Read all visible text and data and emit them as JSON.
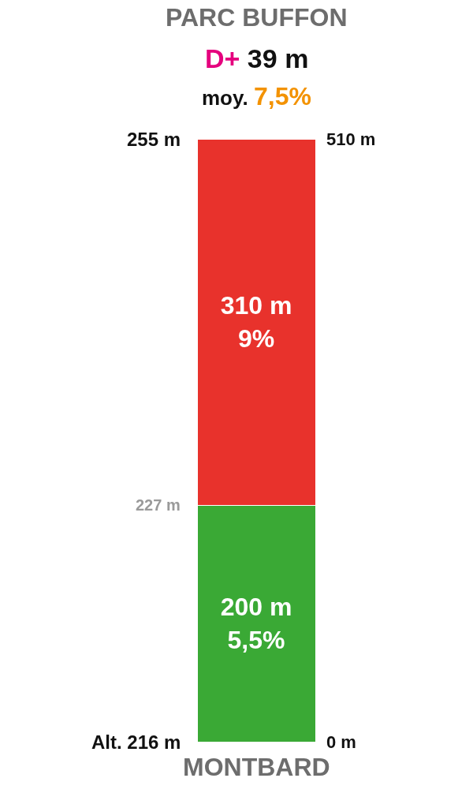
{
  "chart_data": {
    "type": "bar",
    "stacked": true,
    "title": "PARC BUFFON",
    "subtitle": "D+ 39 m\nmoy. 7,5%",
    "xlabel": "MONTBARD",
    "categories": [
      null
    ],
    "series": [
      {
        "color": "#3aa935",
        "values": [
          200
        ],
        "value_labels": [
          "200 m\n5,5%"
        ]
      },
      {
        "color": "#e8322c",
        "values": [
          310
        ],
        "value_labels": [
          "310 m\n9%"
        ]
      }
    ],
    "ylim": [
      0,
      510
    ],
    "yticks": [
      {
        "value": 0,
        "label": "0 m"
      },
      {
        "value": 510,
        "label": "510 m"
      }
    ],
    "annotations": [
      "Alt. 216 m",
      "227 m",
      "255 m"
    ]
  }
}
